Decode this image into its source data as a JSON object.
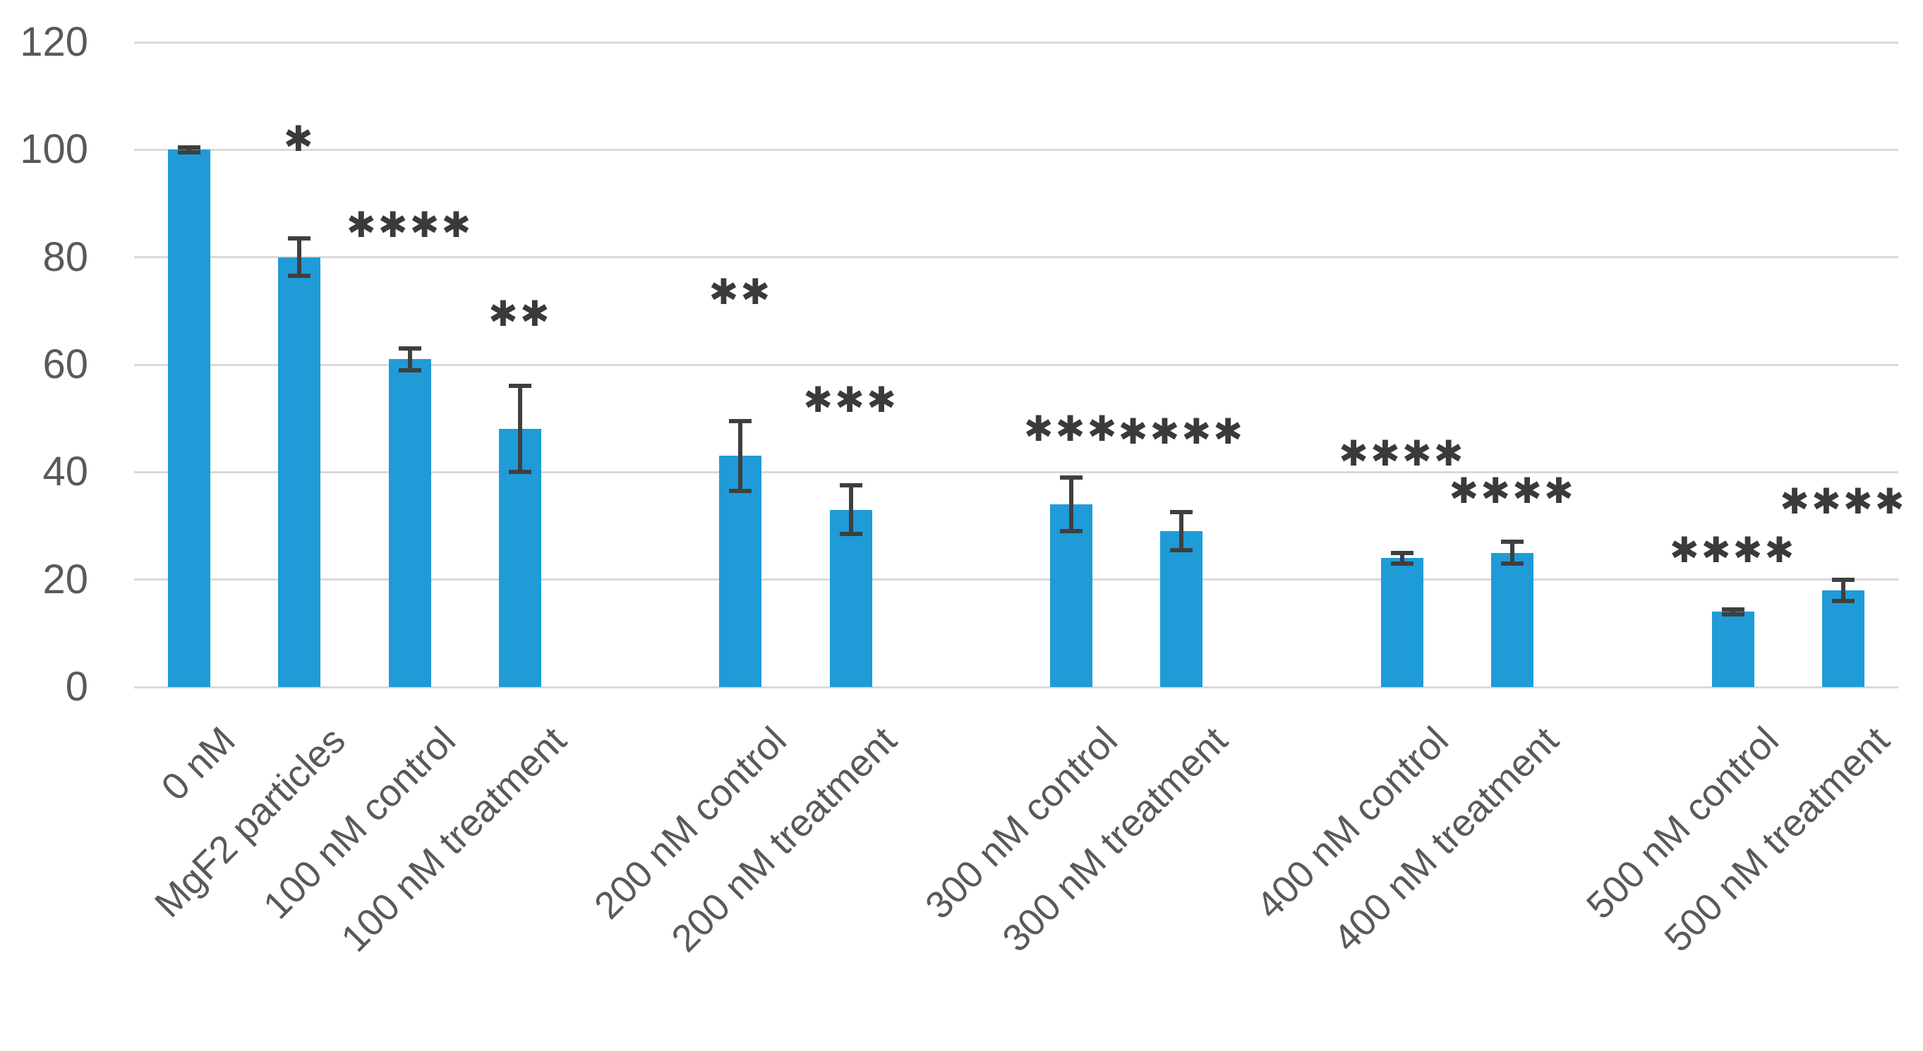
{
  "figure": {
    "background": "#ffffff"
  },
  "chart_data": {
    "type": "bar",
    "title": "",
    "xlabel": "",
    "ylabel": "",
    "categories": [
      "0 nM",
      "MgF2 particles",
      "100 nM control",
      "100 nM treatment",
      "200 nM control",
      "200 nM treatment",
      "300 nM control",
      "300 nM treatment",
      "400 nM control",
      "400 nM treatment",
      "500 nM control",
      "500 nM treatment"
    ],
    "values": [
      100,
      80,
      61,
      48,
      43,
      33,
      34,
      29,
      24,
      25,
      14,
      18
    ],
    "error_bars": [
      0.5,
      3.5,
      2,
      8,
      6.5,
      4.5,
      5,
      3.5,
      1,
      2,
      0.5,
      2
    ],
    "significance": [
      "",
      "*",
      "****",
      "**",
      "**",
      "***",
      "***",
      "****",
      "****",
      "****",
      "****",
      "****"
    ],
    "significance_y": [
      null,
      102,
      86,
      69.5,
      73.5,
      53.5,
      48,
      47.5,
      43.5,
      36.5,
      25.5,
      34.5
    ],
    "significance_glyph": "✱",
    "group_sizes": [
      4,
      2,
      2,
      2,
      2
    ],
    "ylim": [
      0,
      120
    ],
    "yticks": [
      0,
      20,
      40,
      60,
      80,
      100,
      120
    ],
    "grid": true,
    "legend": false,
    "x_label_rotation_deg": -45,
    "colors": {
      "bar": "#1f9bd7",
      "error_bar": "#3f3f3f",
      "gridline": "#d9d9d9",
      "axis_labels": "#595959",
      "significance": "#3a3a3a"
    }
  }
}
